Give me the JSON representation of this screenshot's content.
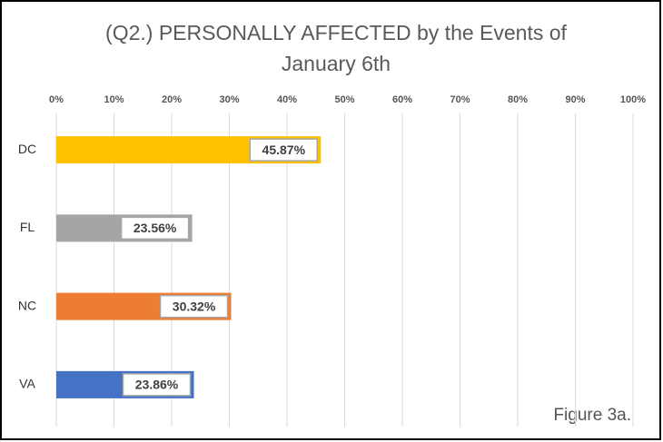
{
  "chart_data": {
    "type": "barh",
    "title": "(Q2.) PERSONALLY AFFECTED by the Events of January 6th",
    "categories": [
      "DC",
      "FL",
      "NC",
      "VA"
    ],
    "values": [
      45.87,
      23.56,
      30.32,
      23.86
    ],
    "value_labels": [
      "45.87%",
      "23.56%",
      "30.32%",
      "23.86%"
    ],
    "colors": [
      "#ffc000",
      "#a5a5a5",
      "#ed7d31",
      "#4472c4"
    ],
    "xlim": [
      0,
      100
    ],
    "xticks": [
      {
        "value": 0,
        "label": "0%"
      },
      {
        "value": 10,
        "label": "10%"
      },
      {
        "value": 20,
        "label": "20%"
      },
      {
        "value": 30,
        "label": "30%"
      },
      {
        "value": 40,
        "label": "40%"
      },
      {
        "value": 50,
        "label": "50%"
      },
      {
        "value": 60,
        "label": "60%"
      },
      {
        "value": 70,
        "label": "70%"
      },
      {
        "value": 80,
        "label": "80%"
      },
      {
        "value": 90,
        "label": "90%"
      },
      {
        "value": 100,
        "label": "100%"
      }
    ],
    "grid": true,
    "annotation": "Figure 3a."
  }
}
